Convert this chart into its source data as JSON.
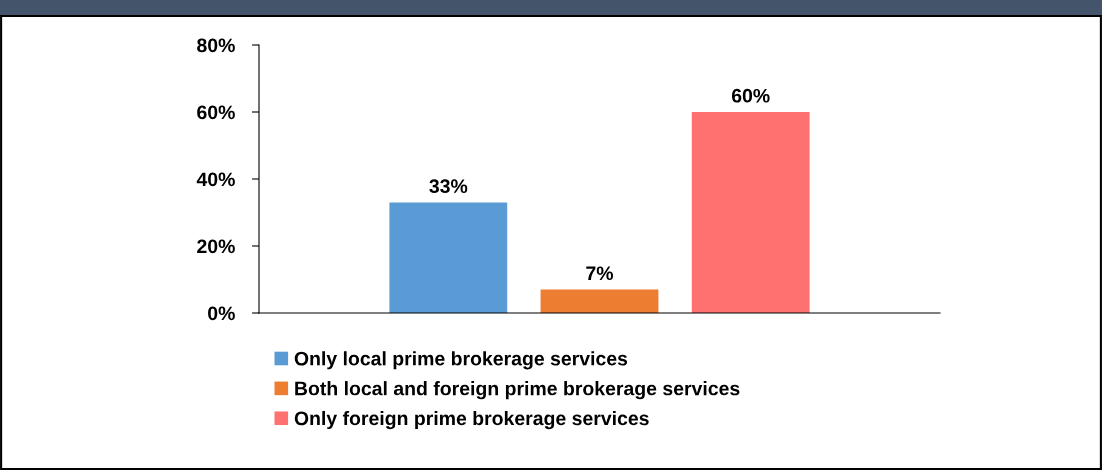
{
  "chart_data": {
    "type": "bar",
    "categories": [
      null
    ],
    "series": [
      {
        "name": "Only local prime brokerage services",
        "color": "#5b9bd5",
        "values": [
          33
        ]
      },
      {
        "name": "Both local and foreign prime brokerage services",
        "color": "#ed7d31",
        "values": [
          7
        ]
      },
      {
        "name": "Only foreign prime brokerage services",
        "color": "#ff7171",
        "values": [
          60
        ]
      }
    ],
    "ylim": [
      0,
      80
    ],
    "yticks": [
      {
        "value": 0,
        "label": "0%"
      },
      {
        "value": 20,
        "label": "20%"
      },
      {
        "value": 40,
        "label": "40%"
      },
      {
        "value": 60,
        "label": "60%"
      },
      {
        "value": 80,
        "label": "80%"
      }
    ],
    "value_labels": [
      "33%",
      "7%",
      "60%"
    ],
    "grid": false,
    "legend": "bottom"
  }
}
